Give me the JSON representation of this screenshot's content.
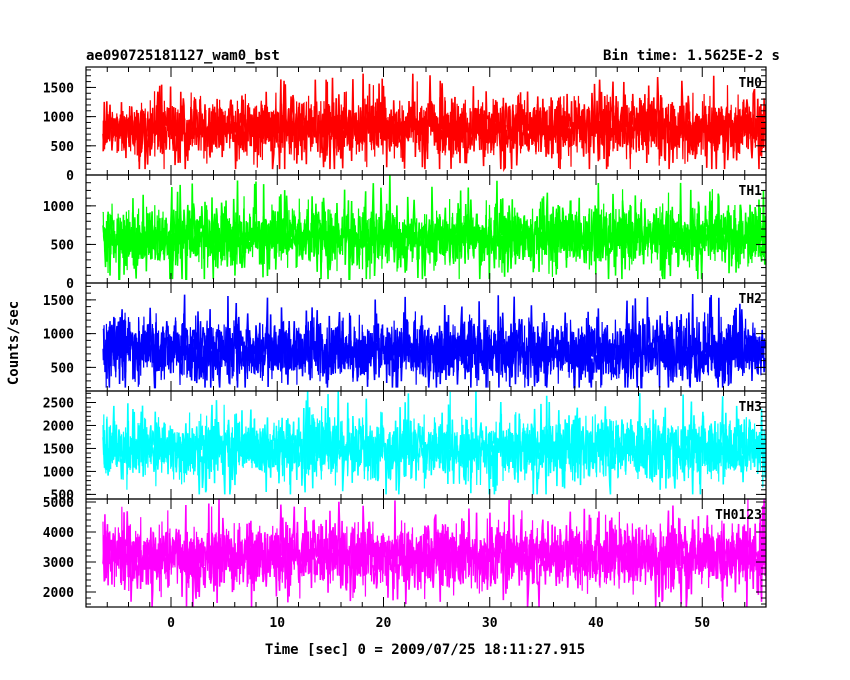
{
  "header": {
    "left_title": "ae090725181127_wam0_bst",
    "right_title": "Bin time: 1.5625E-2 s"
  },
  "axes": {
    "xlabel": "Time [sec] 0 = 2009/07/25 18:11:27.915",
    "ylabel": "Counts/sec"
  },
  "chart_data": [
    {
      "type": "line",
      "name": "TH0",
      "color": "#ff0000",
      "xlim": [
        -8,
        56
      ],
      "ylim": [
        0,
        1850
      ],
      "yticks": [
        0,
        500,
        1000,
        1500
      ],
      "ytick_labels": [
        "0",
        "500",
        "1000",
        "1500"
      ],
      "xticks": [
        0,
        10,
        20,
        30,
        40,
        50
      ],
      "xtick_labels": [
        "0",
        "10",
        "20",
        "30",
        "40",
        "50"
      ],
      "bin_time_s": 0.015625,
      "approx_mean": 800,
      "approx_min": 100,
      "approx_max": 1850
    },
    {
      "type": "line",
      "name": "TH1",
      "color": "#00ff00",
      "xlim": [
        -8,
        56
      ],
      "ylim": [
        0,
        1400
      ],
      "yticks": [
        0,
        500,
        1000
      ],
      "ytick_labels": [
        "0",
        "500",
        "1000"
      ],
      "xticks": [
        0,
        10,
        20,
        30,
        40,
        50
      ],
      "xtick_labels": [
        "0",
        "10",
        "20",
        "30",
        "40",
        "50"
      ],
      "bin_time_s": 0.015625,
      "approx_mean": 600,
      "approx_min": 50,
      "approx_max": 1400
    },
    {
      "type": "line",
      "name": "TH2",
      "color": "#0000ff",
      "xlim": [
        -8,
        56
      ],
      "ylim": [
        150,
        1750
      ],
      "yticks": [
        500,
        1000,
        1500
      ],
      "ytick_labels": [
        "500",
        "1000",
        "1500"
      ],
      "xticks": [
        0,
        10,
        20,
        30,
        40,
        50
      ],
      "xtick_labels": [
        "0",
        "10",
        "20",
        "30",
        "40",
        "50"
      ],
      "bin_time_s": 0.015625,
      "approx_mean": 750,
      "approx_min": 200,
      "approx_max": 1750
    },
    {
      "type": "line",
      "name": "TH3",
      "color": "#00ffff",
      "xlim": [
        -8,
        56
      ],
      "ylim": [
        400,
        2750
      ],
      "yticks": [
        500,
        1000,
        1500,
        2000,
        2500
      ],
      "ytick_labels": [
        "500",
        "1000",
        "1500",
        "2000",
        "2500"
      ],
      "xticks": [
        0,
        10,
        20,
        30,
        40,
        50
      ],
      "xtick_labels": [
        "0",
        "10",
        "20",
        "30",
        "40",
        "50"
      ],
      "bin_time_s": 0.015625,
      "approx_mean": 1500,
      "approx_min": 500,
      "approx_max": 2750
    },
    {
      "type": "line",
      "name": "TH0123",
      "color": "#ff00ff",
      "xlim": [
        -8,
        56
      ],
      "ylim": [
        1500,
        5100
      ],
      "yticks": [
        2000,
        3000,
        4000,
        5000
      ],
      "ytick_labels": [
        "2000",
        "3000",
        "4000",
        "5000"
      ],
      "xticks": [
        0,
        10,
        20,
        30,
        40,
        50
      ],
      "xtick_labels": [
        "0",
        "10",
        "20",
        "30",
        "40",
        "50"
      ],
      "bin_time_s": 0.015625,
      "approx_mean": 3200,
      "approx_min": 1500,
      "approx_max": 5100
    }
  ]
}
